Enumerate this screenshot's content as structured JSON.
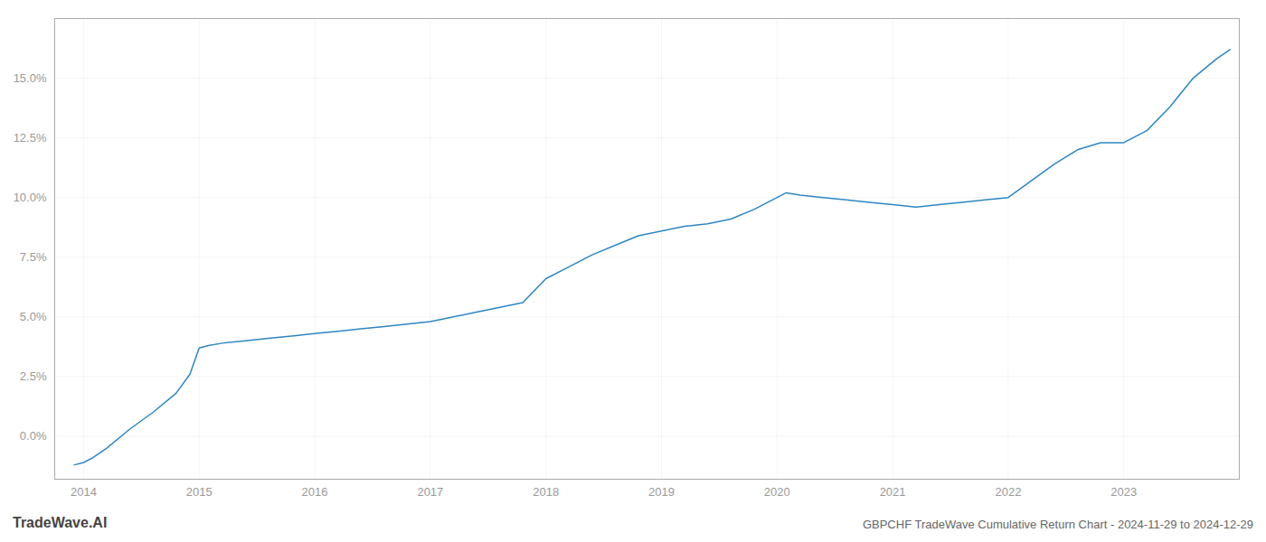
{
  "chart_data": {
    "type": "line",
    "title": "GBPCHF TradeWave Cumulative Return Chart - 2024-11-29 to 2024-12-29",
    "annotations": [
      "TradeWave.AI"
    ],
    "color": "#2e86c1",
    "grid": true,
    "x": [
      2013.92,
      2014.0,
      2014.08,
      2014.2,
      2014.4,
      2014.6,
      2014.8,
      2014.92,
      2015.0,
      2015.08,
      2015.2,
      2015.4,
      2015.6,
      2015.8,
      2016.0,
      2016.2,
      2016.4,
      2016.6,
      2016.8,
      2017.0,
      2017.2,
      2017.4,
      2017.6,
      2017.8,
      2018.0,
      2018.2,
      2018.4,
      2018.6,
      2018.8,
      2019.0,
      2019.2,
      2019.4,
      2019.6,
      2019.8,
      2020.0,
      2020.08,
      2020.2,
      2020.4,
      2020.6,
      2020.8,
      2021.0,
      2021.2,
      2021.4,
      2021.6,
      2021.8,
      2022.0,
      2022.2,
      2022.4,
      2022.6,
      2022.8,
      2023.0,
      2023.2,
      2023.4,
      2023.6,
      2023.8,
      2023.92
    ],
    "values": [
      -0.012,
      -0.011,
      -0.009,
      -0.005,
      0.003,
      0.01,
      0.018,
      0.026,
      0.037,
      0.038,
      0.039,
      0.04,
      0.041,
      0.042,
      0.043,
      0.044,
      0.045,
      0.046,
      0.047,
      0.048,
      0.05,
      0.052,
      0.054,
      0.056,
      0.066,
      0.071,
      0.076,
      0.08,
      0.084,
      0.086,
      0.088,
      0.089,
      0.091,
      0.095,
      0.1,
      0.102,
      0.101,
      0.1,
      0.099,
      0.098,
      0.097,
      0.096,
      0.097,
      0.098,
      0.099,
      0.1,
      0.107,
      0.114,
      0.12,
      0.123,
      0.123,
      0.128,
      0.138,
      0.15,
      0.158,
      0.162
    ],
    "xlim": [
      2013.75,
      2024.0
    ],
    "ylim": [
      -0.018,
      0.175
    ],
    "xticks": [
      2014,
      2015,
      2016,
      2017,
      2018,
      2019,
      2020,
      2021,
      2022,
      2023
    ],
    "yticks": [
      {
        "value": 0.0,
        "label": "0.0%"
      },
      {
        "value": 0.025,
        "label": "2.5%"
      },
      {
        "value": 0.05,
        "label": "5.0%"
      },
      {
        "value": 0.075,
        "label": "7.5%"
      },
      {
        "value": 0.1,
        "label": "10.0%"
      },
      {
        "value": 0.125,
        "label": "12.5%"
      },
      {
        "value": 0.15,
        "label": "15.0%"
      }
    ]
  }
}
